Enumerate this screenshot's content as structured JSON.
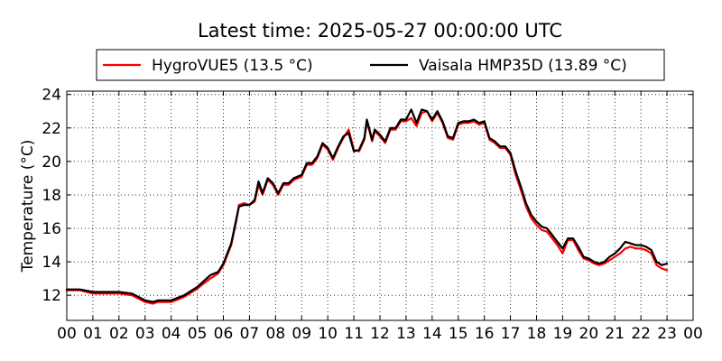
{
  "chart_data": {
    "type": "line",
    "title": "Latest time: 2025-05-27 00:00:00 UTC",
    "xlabel": "",
    "ylabel": "Temperature (°C)",
    "xlim": [
      0,
      24
    ],
    "ylim": [
      10.5,
      24.2
    ],
    "xticks": [
      0,
      1,
      2,
      3,
      4,
      5,
      6,
      7,
      8,
      9,
      10,
      11,
      12,
      13,
      14,
      15,
      16,
      17,
      18,
      19,
      20,
      21,
      22,
      23,
      24
    ],
    "xtick_labels": [
      "00",
      "01",
      "02",
      "03",
      "04",
      "05",
      "06",
      "07",
      "08",
      "09",
      "10",
      "11",
      "12",
      "13",
      "14",
      "15",
      "16",
      "17",
      "18",
      "19",
      "20",
      "21",
      "22",
      "23",
      "00"
    ],
    "yticks": [
      12,
      14,
      16,
      18,
      20,
      22,
      24
    ],
    "ytick_labels": [
      "12",
      "14",
      "16",
      "18",
      "20",
      "22",
      "24"
    ],
    "grid": true,
    "legend": "top",
    "series": [
      {
        "name": "HygroVUE5 (13.5 °C)",
        "color": "#ff0000",
        "points": [
          [
            0,
            12.3
          ],
          [
            0.5,
            12.3
          ],
          [
            1,
            12.1
          ],
          [
            1.5,
            12.1
          ],
          [
            2,
            12.1
          ],
          [
            2.5,
            12.0
          ],
          [
            3,
            11.6
          ],
          [
            3.3,
            11.5
          ],
          [
            3.5,
            11.6
          ],
          [
            4,
            11.6
          ],
          [
            4.5,
            11.9
          ],
          [
            5,
            12.4
          ],
          [
            5.5,
            13.0
          ],
          [
            5.8,
            13.3
          ],
          [
            6,
            13.8
          ],
          [
            6.3,
            15.0
          ],
          [
            6.5,
            16.5
          ],
          [
            6.6,
            17.4
          ],
          [
            6.8,
            17.5
          ],
          [
            7,
            17.4
          ],
          [
            7.2,
            17.6
          ],
          [
            7.35,
            18.6
          ],
          [
            7.5,
            18.0
          ],
          [
            7.7,
            18.9
          ],
          [
            7.9,
            18.6
          ],
          [
            8.1,
            18.0
          ],
          [
            8.3,
            18.6
          ],
          [
            8.5,
            18.6
          ],
          [
            8.7,
            18.9
          ],
          [
            9,
            19.1
          ],
          [
            9.2,
            19.8
          ],
          [
            9.4,
            19.8
          ],
          [
            9.6,
            20.2
          ],
          [
            9.8,
            21.0
          ],
          [
            10,
            20.7
          ],
          [
            10.2,
            20.1
          ],
          [
            10.4,
            20.8
          ],
          [
            10.6,
            21.4
          ],
          [
            10.8,
            21.9
          ],
          [
            11,
            20.7
          ],
          [
            11.2,
            20.6
          ],
          [
            11.4,
            21.3
          ],
          [
            11.5,
            22.4
          ],
          [
            11.7,
            21.2
          ],
          [
            11.8,
            21.8
          ],
          [
            12,
            21.5
          ],
          [
            12.2,
            21.1
          ],
          [
            12.4,
            21.9
          ],
          [
            12.6,
            21.9
          ],
          [
            12.8,
            22.4
          ],
          [
            13,
            22.4
          ],
          [
            13.2,
            22.6
          ],
          [
            13.4,
            22.1
          ],
          [
            13.6,
            22.9
          ],
          [
            13.8,
            23.0
          ],
          [
            14,
            22.4
          ],
          [
            14.2,
            22.9
          ],
          [
            14.4,
            22.3
          ],
          [
            14.6,
            21.4
          ],
          [
            14.8,
            21.3
          ],
          [
            15,
            22.2
          ],
          [
            15.2,
            22.3
          ],
          [
            15.4,
            22.3
          ],
          [
            15.6,
            22.4
          ],
          [
            15.8,
            22.2
          ],
          [
            16,
            22.3
          ],
          [
            16.2,
            21.3
          ],
          [
            16.4,
            21.1
          ],
          [
            16.6,
            20.8
          ],
          [
            16.8,
            20.8
          ],
          [
            17,
            20.4
          ],
          [
            17.2,
            19.2
          ],
          [
            17.4,
            18.3
          ],
          [
            17.6,
            17.3
          ],
          [
            17.8,
            16.6
          ],
          [
            18,
            16.2
          ],
          [
            18.2,
            15.9
          ],
          [
            18.4,
            15.8
          ],
          [
            18.6,
            15.4
          ],
          [
            18.8,
            15.0
          ],
          [
            19,
            14.5
          ],
          [
            19.2,
            15.3
          ],
          [
            19.4,
            15.3
          ],
          [
            19.6,
            14.7
          ],
          [
            19.8,
            14.2
          ],
          [
            20,
            14.1
          ],
          [
            20.2,
            13.9
          ],
          [
            20.4,
            13.8
          ],
          [
            20.6,
            13.9
          ],
          [
            20.8,
            14.1
          ],
          [
            21,
            14.3
          ],
          [
            21.2,
            14.5
          ],
          [
            21.4,
            14.8
          ],
          [
            21.6,
            14.9
          ],
          [
            21.8,
            14.8
          ],
          [
            22,
            14.8
          ],
          [
            22.2,
            14.7
          ],
          [
            22.4,
            14.5
          ],
          [
            22.6,
            13.8
          ],
          [
            22.8,
            13.6
          ],
          [
            23,
            13.5
          ]
        ]
      },
      {
        "name": "Vaisala HMP35D (13.89 °C)",
        "color": "#000000",
        "points": [
          [
            0,
            12.35
          ],
          [
            0.5,
            12.35
          ],
          [
            1,
            12.2
          ],
          [
            1.5,
            12.2
          ],
          [
            2,
            12.2
          ],
          [
            2.5,
            12.1
          ],
          [
            3,
            11.7
          ],
          [
            3.3,
            11.6
          ],
          [
            3.5,
            11.7
          ],
          [
            4,
            11.7
          ],
          [
            4.5,
            12.0
          ],
          [
            5,
            12.5
          ],
          [
            5.5,
            13.2
          ],
          [
            5.8,
            13.4
          ],
          [
            6,
            13.9
          ],
          [
            6.3,
            15.1
          ],
          [
            6.5,
            16.6
          ],
          [
            6.6,
            17.3
          ],
          [
            6.8,
            17.4
          ],
          [
            7,
            17.4
          ],
          [
            7.2,
            17.7
          ],
          [
            7.35,
            18.8
          ],
          [
            7.5,
            18.1
          ],
          [
            7.7,
            19.0
          ],
          [
            7.9,
            18.7
          ],
          [
            8.1,
            18.1
          ],
          [
            8.3,
            18.7
          ],
          [
            8.5,
            18.7
          ],
          [
            8.7,
            19.0
          ],
          [
            9,
            19.2
          ],
          [
            9.2,
            19.9
          ],
          [
            9.4,
            19.9
          ],
          [
            9.6,
            20.3
          ],
          [
            9.8,
            21.1
          ],
          [
            10,
            20.8
          ],
          [
            10.2,
            20.2
          ],
          [
            10.4,
            20.9
          ],
          [
            10.6,
            21.5
          ],
          [
            10.8,
            21.7
          ],
          [
            11,
            20.6
          ],
          [
            11.2,
            20.7
          ],
          [
            11.4,
            21.4
          ],
          [
            11.5,
            22.5
          ],
          [
            11.7,
            21.3
          ],
          [
            11.8,
            21.9
          ],
          [
            12,
            21.6
          ],
          [
            12.2,
            21.2
          ],
          [
            12.4,
            22.0
          ],
          [
            12.6,
            22.0
          ],
          [
            12.8,
            22.5
          ],
          [
            13,
            22.5
          ],
          [
            13.2,
            23.1
          ],
          [
            13.4,
            22.3
          ],
          [
            13.6,
            23.1
          ],
          [
            13.8,
            23.0
          ],
          [
            14,
            22.5
          ],
          [
            14.2,
            23.0
          ],
          [
            14.4,
            22.4
          ],
          [
            14.6,
            21.5
          ],
          [
            14.8,
            21.4
          ],
          [
            15,
            22.3
          ],
          [
            15.2,
            22.4
          ],
          [
            15.4,
            22.4
          ],
          [
            15.6,
            22.5
          ],
          [
            15.8,
            22.3
          ],
          [
            16,
            22.4
          ],
          [
            16.2,
            21.4
          ],
          [
            16.4,
            21.2
          ],
          [
            16.6,
            20.9
          ],
          [
            16.8,
            20.9
          ],
          [
            17,
            20.5
          ],
          [
            17.2,
            19.4
          ],
          [
            17.4,
            18.5
          ],
          [
            17.6,
            17.5
          ],
          [
            17.8,
            16.8
          ],
          [
            18,
            16.4
          ],
          [
            18.2,
            16.1
          ],
          [
            18.4,
            16.0
          ],
          [
            18.6,
            15.6
          ],
          [
            18.8,
            15.2
          ],
          [
            19,
            14.8
          ],
          [
            19.2,
            15.4
          ],
          [
            19.4,
            15.4
          ],
          [
            19.6,
            14.9
          ],
          [
            19.8,
            14.3
          ],
          [
            20,
            14.2
          ],
          [
            20.2,
            14.0
          ],
          [
            20.4,
            13.9
          ],
          [
            20.6,
            14.0
          ],
          [
            20.8,
            14.3
          ],
          [
            21,
            14.5
          ],
          [
            21.2,
            14.8
          ],
          [
            21.4,
            15.2
          ],
          [
            21.6,
            15.1
          ],
          [
            21.8,
            15.0
          ],
          [
            22,
            15.0
          ],
          [
            22.2,
            14.9
          ],
          [
            22.4,
            14.7
          ],
          [
            22.6,
            14.0
          ],
          [
            22.8,
            13.8
          ],
          [
            23,
            13.9
          ]
        ]
      }
    ]
  }
}
